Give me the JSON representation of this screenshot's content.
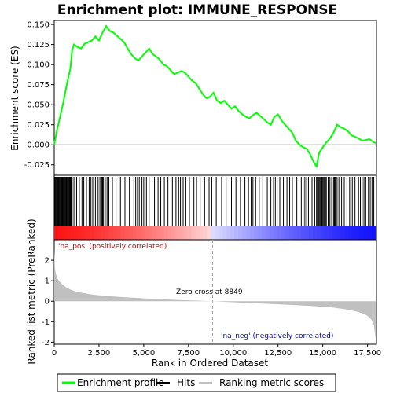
{
  "chart_data": {
    "type": "line",
    "title": "Enrichment plot: IMMUNE_RESPONSE",
    "xlabel": "Rank in Ordered Dataset",
    "ylabel_top": "Enrichment score (ES)",
    "ylabel_bottom": "Ranked list metric (PreRanked)",
    "x_ticks": [
      "0",
      "2,500",
      "5,000",
      "7,500",
      "10,000",
      "12,500",
      "15,000",
      "17,500"
    ],
    "x_tick_values": [
      0,
      2500,
      5000,
      7500,
      10000,
      12500,
      15000,
      17500
    ],
    "xlim": [
      0,
      18000
    ],
    "es_yticks": [
      "0.150",
      "0.125",
      "0.100",
      "0.075",
      "0.050",
      "0.025",
      "0.000",
      "-0.025"
    ],
    "es_ytick_values": [
      0.15,
      0.125,
      0.1,
      0.075,
      0.05,
      0.025,
      0.0,
      -0.025
    ],
    "es_ylim": [
      -0.038,
      0.155
    ],
    "metric_yticks": [
      "2",
      "1",
      "0",
      "-1",
      "-2"
    ],
    "metric_ytick_values": [
      2,
      1,
      0,
      -1,
      -2
    ],
    "metric_ylim": [
      -2.1,
      3.0
    ],
    "zero_cross_label": "Zero cross at 8849",
    "zero_cross": 8849,
    "pos_label": "'na_pos' (positively correlated)",
    "neg_label": "'na_neg' (negatively correlated)",
    "series": [
      {
        "name": "Enrichment profile",
        "color": "#00ff00",
        "x": [
          0,
          150,
          300,
          500,
          700,
          900,
          1000,
          1100,
          1300,
          1500,
          1700,
          1900,
          2100,
          2300,
          2500,
          2700,
          2900,
          3100,
          3300,
          3500,
          3700,
          3900,
          4100,
          4300,
          4500,
          4700,
          4900,
          5100,
          5300,
          5500,
          5700,
          5900,
          6100,
          6300,
          6500,
          6700,
          6900,
          7100,
          7300,
          7500,
          7700,
          7900,
          8100,
          8300,
          8500,
          8700,
          8900,
          9100,
          9300,
          9500,
          9700,
          9900,
          10100,
          10300,
          10500,
          10700,
          10900,
          11100,
          11300,
          11500,
          11700,
          11900,
          12100,
          12300,
          12500,
          12700,
          12900,
          13100,
          13300,
          13500,
          13700,
          13900,
          14100,
          14300,
          14500,
          14650,
          14800,
          15000,
          15200,
          15400,
          15600,
          15800,
          16000,
          16200,
          16400,
          16600,
          16800,
          17000,
          17200,
          17400,
          17600,
          17800,
          17950
        ],
        "values": [
          0.0,
          0.018,
          0.032,
          0.052,
          0.075,
          0.095,
          0.118,
          0.125,
          0.122,
          0.12,
          0.126,
          0.128,
          0.13,
          0.135,
          0.13,
          0.14,
          0.148,
          0.142,
          0.14,
          0.136,
          0.132,
          0.128,
          0.12,
          0.113,
          0.108,
          0.105,
          0.11,
          0.115,
          0.12,
          0.113,
          0.11,
          0.106,
          0.1,
          0.098,
          0.093,
          0.088,
          0.09,
          0.092,
          0.09,
          0.085,
          0.08,
          0.077,
          0.07,
          0.063,
          0.058,
          0.06,
          0.065,
          0.055,
          0.052,
          0.055,
          0.05,
          0.045,
          0.048,
          0.042,
          0.038,
          0.035,
          0.033,
          0.037,
          0.04,
          0.036,
          0.032,
          0.028,
          0.025,
          0.035,
          0.038,
          0.03,
          0.025,
          0.02,
          0.015,
          0.005,
          0.0,
          -0.003,
          -0.005,
          -0.012,
          -0.022,
          -0.027,
          -0.01,
          -0.003,
          0.003,
          0.008,
          0.015,
          0.025,
          0.022,
          0.02,
          0.017,
          0.012,
          0.01,
          0.008,
          0.005,
          0.006,
          0.007,
          0.004,
          0.002
        ]
      },
      {
        "name": "Hits",
        "color": "#000000"
      },
      {
        "name": "Ranking metric scores",
        "color": "#c0c0c0",
        "x": [
          0,
          40,
          100,
          200,
          350,
          500,
          700,
          900,
          1200,
          1500,
          2000,
          2500,
          3000,
          4000,
          5000,
          6000,
          7000,
          8000,
          8849,
          9500,
          10500,
          11500,
          12500,
          13500,
          14500,
          15500,
          16000,
          16500,
          17000,
          17300,
          17500,
          17700,
          17850,
          17950
        ],
        "values": [
          2.55,
          1.6,
          1.3,
          1.08,
          0.9,
          0.78,
          0.66,
          0.57,
          0.48,
          0.42,
          0.34,
          0.29,
          0.25,
          0.19,
          0.14,
          0.1,
          0.06,
          0.03,
          0.0,
          -0.03,
          -0.07,
          -0.11,
          -0.15,
          -0.19,
          -0.24,
          -0.3,
          -0.36,
          -0.43,
          -0.53,
          -0.62,
          -0.72,
          -0.88,
          -1.15,
          -1.85
        ]
      }
    ],
    "hits": [
      40,
      80,
      120,
      160,
      200,
      240,
      280,
      320,
      360,
      400,
      440,
      480,
      520,
      560,
      600,
      640,
      680,
      720,
      760,
      800,
      840,
      880,
      920,
      960,
      1000,
      1100,
      1250,
      1400,
      1550,
      1650,
      1800,
      1950,
      2050,
      2150,
      2300,
      2450,
      2550,
      2650,
      2700,
      2750,
      2850,
      2950,
      3050,
      3250,
      3450,
      3700,
      3950,
      4200,
      4450,
      4550,
      4650,
      4750,
      4900,
      5000,
      5150,
      5300,
      5600,
      5800,
      5950,
      6150,
      6350,
      6600,
      6800,
      6950,
      7050,
      7200,
      7350,
      7550,
      7800,
      7950,
      8150,
      8400,
      8650,
      8800,
      9050,
      9350,
      9600,
      9900,
      10150,
      10400,
      10650,
      10850,
      11000,
      11100,
      11250,
      11450,
      11650,
      11900,
      12100,
      12250,
      12350,
      12450,
      12600,
      12800,
      13000,
      13150,
      13300,
      13550,
      13800,
      13900,
      14000,
      14100,
      14200,
      14400,
      14550,
      14650,
      14700,
      14750,
      14800,
      14850,
      14900,
      14950,
      15000,
      15050,
      15100,
      15150,
      15200,
      15300,
      15400,
      15500,
      15600,
      15650,
      15700,
      15800,
      15900,
      16050,
      16200,
      16350,
      16500,
      16650,
      16800,
      17000,
      17100,
      17200,
      17300,
      17400,
      17550,
      17650,
      17750,
      17850
    ]
  },
  "legend": {
    "items": [
      {
        "label": "Enrichment profile"
      },
      {
        "label": "Hits"
      },
      {
        "label": "Ranking metric scores"
      }
    ]
  }
}
